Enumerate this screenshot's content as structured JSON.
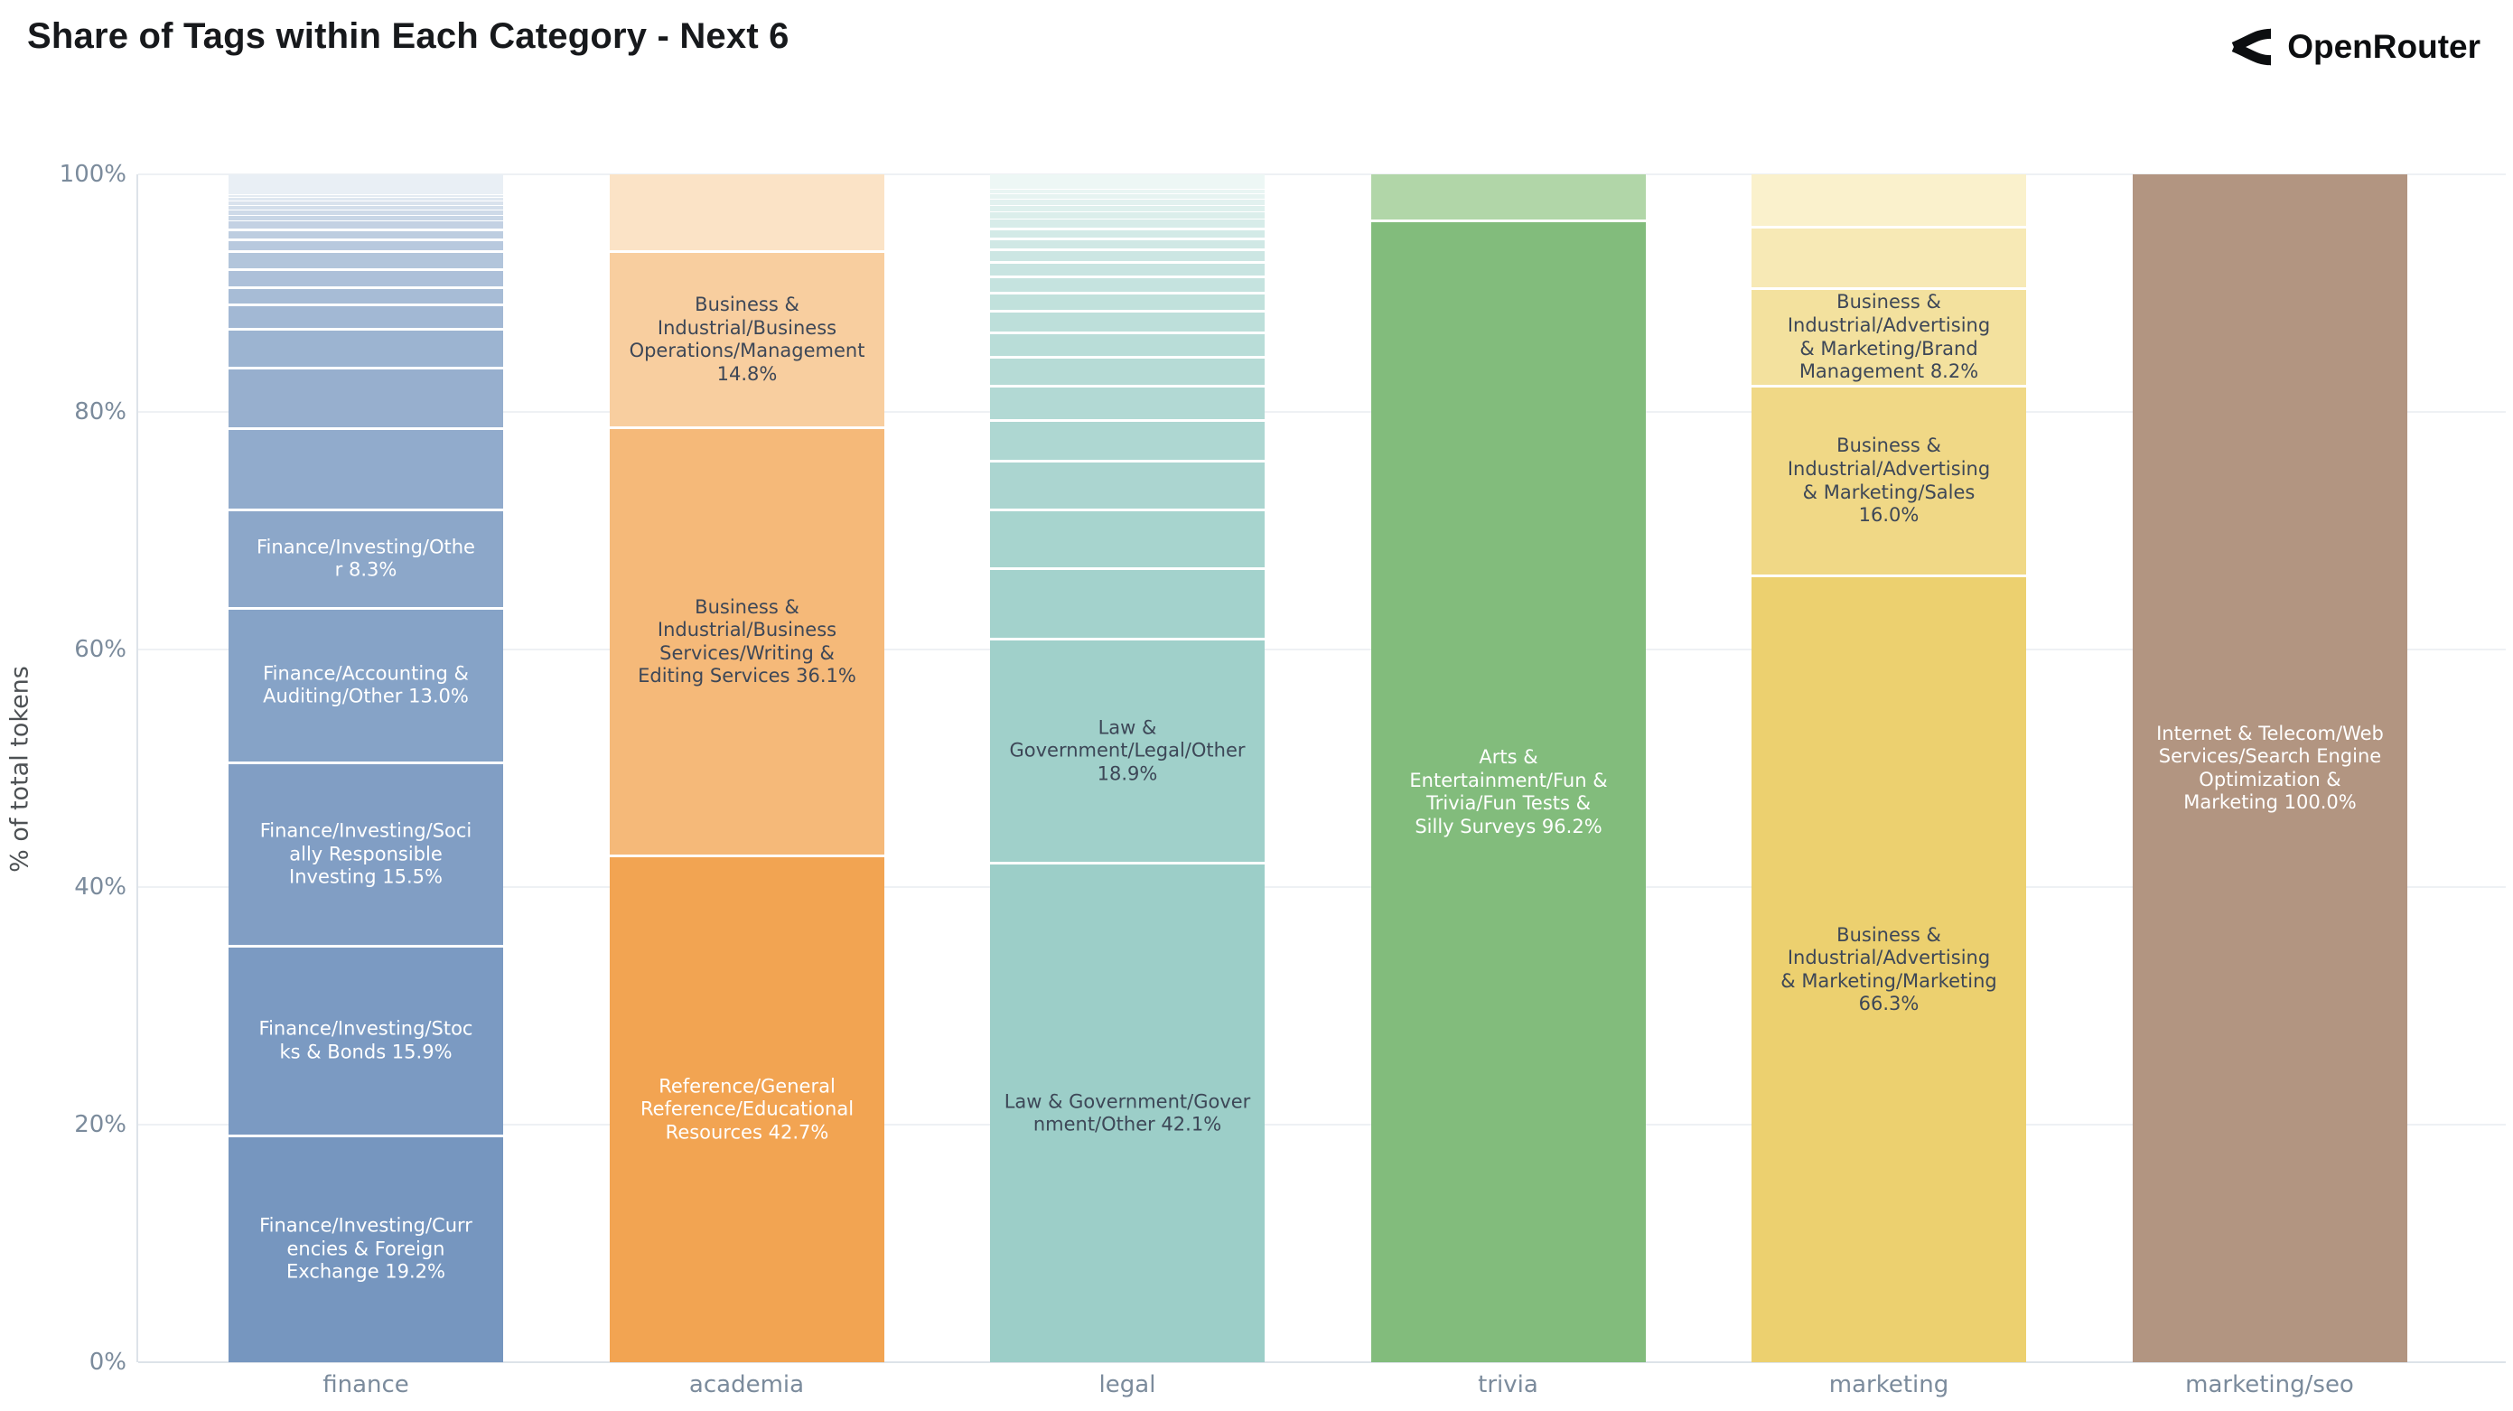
{
  "page": {
    "title": "Share of Tags within Each Category - Next 6",
    "brand": "OpenRouter"
  },
  "colors": {
    "background": "#ffffff",
    "title_text": "#17191c",
    "brand_text": "#0c0e10",
    "axis_tick": "#7b8b9c",
    "axis_title": "#4d5154",
    "gridline": "#eef1f4",
    "axis_line": "#dde3e9",
    "segment_gap": "#ffffff",
    "label_dark": "#3d4757",
    "label_light": "#ffffff"
  },
  "chart_data": {
    "type": "bar",
    "stacked": true,
    "normalized": "percent",
    "title": "Share of Tags within Each Category - Next 6",
    "xlabel": "",
    "ylabel": "% of total tokens",
    "ylim": [
      0,
      100
    ],
    "grid": true,
    "legend": "none",
    "yticks": [
      {
        "pct": 0,
        "label": "0%"
      },
      {
        "pct": 20,
        "label": "20%"
      },
      {
        "pct": 40,
        "label": "40%"
      },
      {
        "pct": 60,
        "label": "60%"
      },
      {
        "pct": 80,
        "label": "80%"
      },
      {
        "pct": 100,
        "label": "100%"
      }
    ],
    "categories": [
      "finance",
      "academia",
      "legal",
      "trivia",
      "marketing",
      "marketing/seo"
    ],
    "bars": [
      {
        "category": "finance",
        "base_color": "#7696BF",
        "light_color": "#E9EFF5",
        "segments": [
          {
            "pct": 19.2,
            "label": "Finance/Investing/Currencies & Foreign Exchange 19.2%",
            "lines": [
              "Finance/Investing/Curr",
              "encies & Foreign",
              "Exchange 19.2%"
            ],
            "text": "light"
          },
          {
            "pct": 15.9,
            "label": "Finance/Investing/Stocks & Bonds 15.9%",
            "lines": [
              "Finance/Investing/Stoc",
              "ks & Bonds 15.9%"
            ],
            "text": "light"
          },
          {
            "pct": 15.5,
            "label": "Finance/Investing/Socially Responsible Investing 15.5%",
            "lines": [
              "Finance/Investing/Soci",
              "ally Responsible",
              "Investing 15.5%"
            ],
            "text": "light"
          },
          {
            "pct": 13.0,
            "label": "Finance/Accounting & Auditing/Other 13.0%",
            "lines": [
              "Finance/Accounting &",
              "Auditing/Other 13.0%"
            ],
            "text": "light"
          },
          {
            "pct": 8.3,
            "label": "Finance/Investing/Other 8.3%",
            "lines": [
              "Finance/Investing/Othe",
              "r 8.3%"
            ],
            "text": "light"
          },
          {
            "pct": 6.8
          },
          {
            "pct": 5.1
          },
          {
            "pct": 3.3
          },
          {
            "pct": 2.0
          },
          {
            "pct": 1.5
          },
          {
            "pct": 1.5
          },
          {
            "pct": 1.5
          },
          {
            "pct": 1.0
          },
          {
            "pct": 0.8
          },
          {
            "pct": 0.7
          },
          {
            "pct": 0.5
          },
          {
            "pct": 0.45
          },
          {
            "pct": 0.4
          },
          {
            "pct": 0.35
          },
          {
            "pct": 0.3
          },
          {
            "pct": 0.2
          },
          {
            "pct": 1.7
          }
        ]
      },
      {
        "category": "academia",
        "base_color": "#F2A452",
        "light_color": "#FBE3C6",
        "segments": [
          {
            "pct": 42.7,
            "label": "Reference/General Reference/Educational Resources 42.7%",
            "lines": [
              "Reference/General",
              "Reference/Educational",
              "Resources 42.7%"
            ],
            "text": "light"
          },
          {
            "pct": 36.1,
            "label": "Business & Industrial/Business Services/Writing & Editing Services 36.1%",
            "lines": [
              "Business &",
              "Industrial/Business",
              "Services/Writing &",
              "Editing Services 36.1%"
            ],
            "text": "dark"
          },
          {
            "pct": 14.8,
            "label": "Business & Industrial/Business Operations/Management 14.8%",
            "lines": [
              "Business &",
              "Industrial/Business",
              "Operations/Management",
              "14.8%"
            ],
            "text": "dark"
          },
          {
            "pct": 6.4
          }
        ]
      },
      {
        "category": "legal",
        "base_color": "#9CCEC8",
        "light_color": "#EDF7F5",
        "segments": [
          {
            "pct": 42.1,
            "label": "Law & Government/Government/Other 42.1%",
            "lines": [
              "Law & Government/Gover",
              "nment/Other 42.1%"
            ],
            "text": "dark"
          },
          {
            "pct": 18.9,
            "label": "Law & Government/Legal/Other 18.9%",
            "lines": [
              "Law &",
              "Government/Legal/Other",
              "18.9%"
            ],
            "text": "dark"
          },
          {
            "pct": 5.9
          },
          {
            "pct": 5.0
          },
          {
            "pct": 4.1
          },
          {
            "pct": 3.4
          },
          {
            "pct": 2.9
          },
          {
            "pct": 2.4
          },
          {
            "pct": 2.1
          },
          {
            "pct": 1.8
          },
          {
            "pct": 1.55
          },
          {
            "pct": 1.35
          },
          {
            "pct": 1.2
          },
          {
            "pct": 1.05
          },
          {
            "pct": 0.95
          },
          {
            "pct": 0.85
          },
          {
            "pct": 0.75
          },
          {
            "pct": 0.6
          },
          {
            "pct": 0.55
          },
          {
            "pct": 0.5
          },
          {
            "pct": 0.45
          },
          {
            "pct": 0.4
          },
          {
            "pct": 1.2
          }
        ]
      },
      {
        "category": "trivia",
        "base_color": "#82BC7C",
        "light_color": "#B1D6A8",
        "segments": [
          {
            "pct": 96.2,
            "label": "Arts & Entertainment/Fun & Trivia/Fun Tests & Silly Surveys 96.2%",
            "lines": [
              "Arts &",
              "Entertainment/Fun &",
              "Trivia/Fun Tests &",
              "Silly Surveys 96.2%"
            ],
            "text": "light"
          },
          {
            "pct": 3.8
          }
        ]
      },
      {
        "category": "marketing",
        "base_color": "#ECD06F",
        "light_color": "#FAF1CC",
        "segments": [
          {
            "pct": 66.3,
            "label": "Business & Industrial/Advertising & Marketing/Marketing 66.3%",
            "lines": [
              "Business &",
              "Industrial/Advertising",
              "& Marketing/Marketing",
              "66.3%"
            ],
            "text": "dark"
          },
          {
            "pct": 16.0,
            "label": "Business & Industrial/Advertising & Marketing/Sales 16.0%",
            "lines": [
              "Business &",
              "Industrial/Advertising",
              "& Marketing/Sales",
              "16.0%"
            ],
            "text": "dark"
          },
          {
            "pct": 8.2,
            "label": "Business & Industrial/Advertising & Marketing/Brand Management 8.2%",
            "lines": [
              "Business &",
              "Industrial/Advertising",
              "& Marketing/Brand",
              "Management 8.2%"
            ],
            "text": "dark"
          },
          {
            "pct": 5.2
          },
          {
            "pct": 4.3
          }
        ]
      },
      {
        "category": "marketing/seo",
        "base_color": "#B29581",
        "light_color": "#B29581",
        "segments": [
          {
            "pct": 100.0,
            "label": "Internet & Telecom/Web Services/Search Engine Optimization & Marketing 100.0%",
            "lines": [
              "Internet & Telecom/Web",
              "Services/Search Engine",
              "Optimization &",
              "Marketing 100.0%"
            ],
            "text": "light"
          }
        ]
      }
    ]
  }
}
